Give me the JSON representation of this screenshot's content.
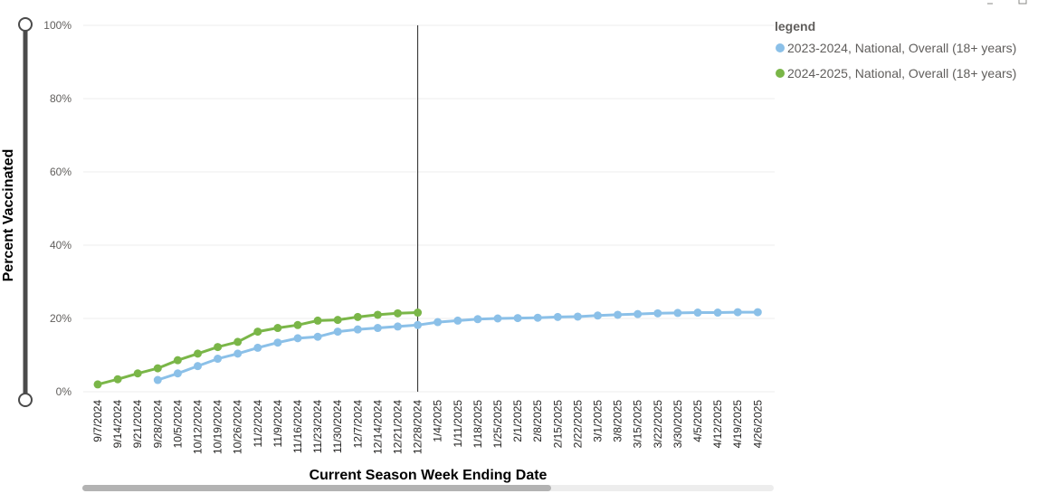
{
  "chart_data": {
    "type": "line",
    "ylabel": "Percent Vaccinated",
    "xlabel": "Current Season Week Ending Date",
    "ylim": [
      0,
      100
    ],
    "y_ticks": [
      "0%",
      "20%",
      "40%",
      "60%",
      "80%",
      "100%"
    ],
    "y_tick_values": [
      0,
      20,
      40,
      60,
      80,
      100
    ],
    "grid": true,
    "legend_title": "legend",
    "legend_position": "top-right",
    "reference_line_at": "12/28/2024",
    "categories": [
      "9/7/2024",
      "9/14/2024",
      "9/21/2024",
      "9/28/2024",
      "10/5/2024",
      "10/12/2024",
      "10/19/2024",
      "10/26/2024",
      "11/2/2024",
      "11/9/2024",
      "11/16/2024",
      "11/23/2024",
      "11/30/2024",
      "12/7/2024",
      "12/14/2024",
      "12/21/2024",
      "12/28/2024",
      "1/4/2025",
      "1/11/2025",
      "1/18/2025",
      "1/25/2025",
      "2/1/2025",
      "2/8/2025",
      "2/15/2025",
      "2/22/2025",
      "3/1/2025",
      "3/8/2025",
      "3/15/2025",
      "3/22/2025",
      "3/30/2025",
      "4/5/2025",
      "4/12/2025",
      "4/19/2025",
      "4/26/2025"
    ],
    "series": [
      {
        "name": "2023-2024, National, Overall (18+ years)",
        "color": "#8bc0e8",
        "values": [
          null,
          null,
          null,
          3.2,
          5.0,
          7.0,
          9.0,
          10.4,
          12.0,
          13.4,
          14.6,
          15.0,
          16.4,
          17.0,
          17.4,
          17.8,
          18.2,
          19.0,
          19.4,
          19.8,
          20.0,
          20.1,
          20.2,
          20.4,
          20.5,
          20.8,
          21.0,
          21.2,
          21.4,
          21.5,
          21.6,
          21.6,
          21.7,
          21.7
        ]
      },
      {
        "name": "2024-2025, National, Overall (18+ years)",
        "color": "#7ab648",
        "values": [
          2.0,
          3.4,
          5.0,
          6.4,
          8.6,
          10.4,
          12.2,
          13.6,
          16.4,
          17.4,
          18.2,
          19.4,
          19.6,
          20.4,
          21.0,
          21.4,
          21.6,
          null,
          null,
          null,
          null,
          null,
          null,
          null,
          null,
          null,
          null,
          null,
          null,
          null,
          null,
          null,
          null,
          null
        ]
      }
    ]
  }
}
